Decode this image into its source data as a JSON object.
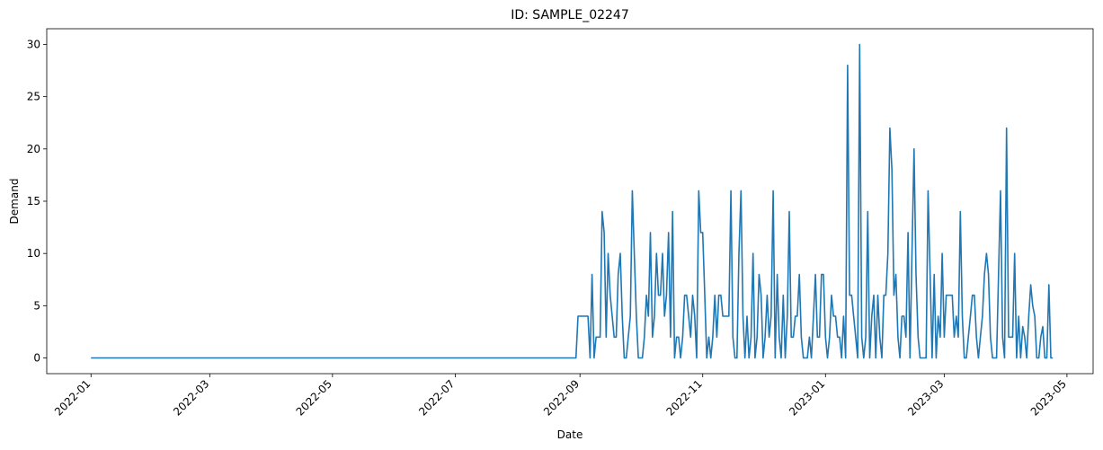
{
  "chart_data": {
    "type": "line",
    "title": "ID: SAMPLE_02247",
    "xlabel": "Date",
    "ylabel": "Demand",
    "ylim": [
      -1.5,
      31.5
    ],
    "xlim": [
      "2021-12-10",
      "2023-05-14"
    ],
    "grid": false,
    "legend": "none",
    "x_ticks": [
      "2022-01",
      "2022-03",
      "2022-05",
      "2022-07",
      "2022-09",
      "2022-11",
      "2023-01",
      "2023-03",
      "2023-05"
    ],
    "y_ticks": [
      0,
      5,
      10,
      15,
      20,
      25,
      30
    ],
    "line_color": "#1f77b4",
    "series": [
      {
        "points": [
          [
            "2022-01-01",
            0
          ],
          [
            "2022-08-30",
            0
          ],
          [
            "2022-08-31",
            4
          ],
          [
            "2022-09-05",
            4
          ],
          [
            "2022-09-06",
            0
          ],
          [
            "2022-09-07",
            8
          ],
          [
            "2022-09-08",
            0
          ],
          [
            "2022-09-09",
            2
          ],
          [
            "2022-09-11",
            2
          ],
          [
            "2022-09-12",
            14
          ],
          [
            "2022-09-13",
            12
          ],
          [
            "2022-09-14",
            2
          ],
          [
            "2022-09-15",
            10
          ],
          [
            "2022-09-16",
            6
          ],
          [
            "2022-09-17",
            4
          ],
          [
            "2022-09-18",
            2
          ],
          [
            "2022-09-19",
            2
          ],
          [
            "2022-09-20",
            8
          ],
          [
            "2022-09-21",
            10
          ],
          [
            "2022-09-22",
            4
          ],
          [
            "2022-09-23",
            0
          ],
          [
            "2022-09-24",
            0
          ],
          [
            "2022-09-25",
            2
          ],
          [
            "2022-09-26",
            4
          ],
          [
            "2022-09-27",
            16
          ],
          [
            "2022-09-28",
            10
          ],
          [
            "2022-09-29",
            4
          ],
          [
            "2022-09-30",
            0
          ],
          [
            "2022-10-01",
            0
          ],
          [
            "2022-10-02",
            0
          ],
          [
            "2022-10-03",
            2
          ],
          [
            "2022-10-04",
            6
          ],
          [
            "2022-10-05",
            4
          ],
          [
            "2022-10-06",
            12
          ],
          [
            "2022-10-07",
            2
          ],
          [
            "2022-10-08",
            4
          ],
          [
            "2022-10-09",
            10
          ],
          [
            "2022-10-10",
            6
          ],
          [
            "2022-10-11",
            6
          ],
          [
            "2022-10-12",
            10
          ],
          [
            "2022-10-13",
            4
          ],
          [
            "2022-10-14",
            6
          ],
          [
            "2022-10-15",
            12
          ],
          [
            "2022-10-16",
            2
          ],
          [
            "2022-10-17",
            14
          ],
          [
            "2022-10-18",
            0
          ],
          [
            "2022-10-19",
            2
          ],
          [
            "2022-10-20",
            2
          ],
          [
            "2022-10-21",
            0
          ],
          [
            "2022-10-22",
            2
          ],
          [
            "2022-10-23",
            6
          ],
          [
            "2022-10-24",
            6
          ],
          [
            "2022-10-25",
            4
          ],
          [
            "2022-10-26",
            2
          ],
          [
            "2022-10-27",
            6
          ],
          [
            "2022-10-28",
            4
          ],
          [
            "2022-10-29",
            0
          ],
          [
            "2022-10-30",
            16
          ],
          [
            "2022-10-31",
            12
          ],
          [
            "2022-11-01",
            12
          ],
          [
            "2022-11-02",
            6
          ],
          [
            "2022-11-03",
            0
          ],
          [
            "2022-11-04",
            2
          ],
          [
            "2022-11-05",
            0
          ],
          [
            "2022-11-06",
            2
          ],
          [
            "2022-11-07",
            6
          ],
          [
            "2022-11-08",
            2
          ],
          [
            "2022-11-09",
            6
          ],
          [
            "2022-11-10",
            6
          ],
          [
            "2022-11-11",
            4
          ],
          [
            "2022-11-14",
            4
          ],
          [
            "2022-11-15",
            16
          ],
          [
            "2022-11-16",
            2
          ],
          [
            "2022-11-17",
            0
          ],
          [
            "2022-11-18",
            0
          ],
          [
            "2022-11-19",
            10
          ],
          [
            "2022-11-20",
            16
          ],
          [
            "2022-11-21",
            4
          ],
          [
            "2022-11-22",
            0
          ],
          [
            "2022-11-23",
            4
          ],
          [
            "2022-11-24",
            0
          ],
          [
            "2022-11-25",
            2
          ],
          [
            "2022-11-26",
            10
          ],
          [
            "2022-11-27",
            0
          ],
          [
            "2022-11-28",
            2
          ],
          [
            "2022-11-29",
            8
          ],
          [
            "2022-11-30",
            6
          ],
          [
            "2022-12-01",
            0
          ],
          [
            "2022-12-02",
            2
          ],
          [
            "2022-12-03",
            6
          ],
          [
            "2022-12-04",
            2
          ],
          [
            "2022-12-05",
            4
          ],
          [
            "2022-12-06",
            16
          ],
          [
            "2022-12-07",
            0
          ],
          [
            "2022-12-08",
            8
          ],
          [
            "2022-12-09",
            2
          ],
          [
            "2022-12-10",
            0
          ],
          [
            "2022-12-11",
            6
          ],
          [
            "2022-12-12",
            0
          ],
          [
            "2022-12-13",
            4
          ],
          [
            "2022-12-14",
            14
          ],
          [
            "2022-12-15",
            2
          ],
          [
            "2022-12-16",
            2
          ],
          [
            "2022-12-17",
            4
          ],
          [
            "2022-12-18",
            4
          ],
          [
            "2022-12-19",
            8
          ],
          [
            "2022-12-20",
            2
          ],
          [
            "2022-12-21",
            0
          ],
          [
            "2022-12-22",
            0
          ],
          [
            "2022-12-23",
            0
          ],
          [
            "2022-12-24",
            2
          ],
          [
            "2022-12-25",
            0
          ],
          [
            "2022-12-26",
            4
          ],
          [
            "2022-12-27",
            8
          ],
          [
            "2022-12-28",
            2
          ],
          [
            "2022-12-29",
            2
          ],
          [
            "2022-12-30",
            8
          ],
          [
            "2022-12-31",
            8
          ],
          [
            "2023-01-01",
            2
          ],
          [
            "2023-01-02",
            0
          ],
          [
            "2023-01-03",
            2
          ],
          [
            "2023-01-04",
            6
          ],
          [
            "2023-01-05",
            4
          ],
          [
            "2023-01-06",
            4
          ],
          [
            "2023-01-07",
            2
          ],
          [
            "2023-01-08",
            2
          ],
          [
            "2023-01-09",
            0
          ],
          [
            "2023-01-10",
            4
          ],
          [
            "2023-01-11",
            0
          ],
          [
            "2023-01-12",
            28
          ],
          [
            "2023-01-13",
            6
          ],
          [
            "2023-01-14",
            6
          ],
          [
            "2023-01-15",
            4
          ],
          [
            "2023-01-16",
            2
          ],
          [
            "2023-01-17",
            0
          ],
          [
            "2023-01-18",
            30
          ],
          [
            "2023-01-19",
            2
          ],
          [
            "2023-01-20",
            0
          ],
          [
            "2023-01-21",
            2
          ],
          [
            "2023-01-22",
            14
          ],
          [
            "2023-01-23",
            0
          ],
          [
            "2023-01-24",
            4
          ],
          [
            "2023-01-25",
            6
          ],
          [
            "2023-01-26",
            0
          ],
          [
            "2023-01-27",
            6
          ],
          [
            "2023-01-28",
            2
          ],
          [
            "2023-01-29",
            0
          ],
          [
            "2023-01-30",
            6
          ],
          [
            "2023-01-31",
            6
          ],
          [
            "2023-02-01",
            10
          ],
          [
            "2023-02-02",
            22
          ],
          [
            "2023-02-03",
            18
          ],
          [
            "2023-02-04",
            6
          ],
          [
            "2023-02-05",
            8
          ],
          [
            "2023-02-06",
            2
          ],
          [
            "2023-02-07",
            0
          ],
          [
            "2023-02-08",
            4
          ],
          [
            "2023-02-09",
            4
          ],
          [
            "2023-02-10",
            2
          ],
          [
            "2023-02-11",
            12
          ],
          [
            "2023-02-12",
            0
          ],
          [
            "2023-02-13",
            10
          ],
          [
            "2023-02-14",
            20
          ],
          [
            "2023-02-15",
            8
          ],
          [
            "2023-02-16",
            2
          ],
          [
            "2023-02-17",
            0
          ],
          [
            "2023-02-18",
            0
          ],
          [
            "2023-02-19",
            0
          ],
          [
            "2023-02-20",
            0
          ],
          [
            "2023-02-21",
            16
          ],
          [
            "2023-02-22",
            8
          ],
          [
            "2023-02-23",
            0
          ],
          [
            "2023-02-24",
            8
          ],
          [
            "2023-02-25",
            0
          ],
          [
            "2023-02-26",
            4
          ],
          [
            "2023-02-27",
            2
          ],
          [
            "2023-02-28",
            10
          ],
          [
            "2023-03-01",
            2
          ],
          [
            "2023-03-02",
            6
          ],
          [
            "2023-03-03",
            6
          ],
          [
            "2023-03-04",
            6
          ],
          [
            "2023-03-05",
            6
          ],
          [
            "2023-03-06",
            2
          ],
          [
            "2023-03-07",
            4
          ],
          [
            "2023-03-08",
            2
          ],
          [
            "2023-03-09",
            14
          ],
          [
            "2023-03-10",
            4
          ],
          [
            "2023-03-11",
            0
          ],
          [
            "2023-03-12",
            0
          ],
          [
            "2023-03-13",
            2
          ],
          [
            "2023-03-14",
            4
          ],
          [
            "2023-03-15",
            6
          ],
          [
            "2023-03-16",
            6
          ],
          [
            "2023-03-17",
            2
          ],
          [
            "2023-03-18",
            0
          ],
          [
            "2023-03-19",
            2
          ],
          [
            "2023-03-20",
            4
          ],
          [
            "2023-03-21",
            8
          ],
          [
            "2023-03-22",
            10
          ],
          [
            "2023-03-23",
            8
          ],
          [
            "2023-03-24",
            2
          ],
          [
            "2023-03-25",
            0
          ],
          [
            "2023-03-26",
            0
          ],
          [
            "2023-03-27",
            0
          ],
          [
            "2023-03-28",
            8
          ],
          [
            "2023-03-29",
            16
          ],
          [
            "2023-03-30",
            2
          ],
          [
            "2023-03-31",
            0
          ],
          [
            "2023-04-01",
            22
          ],
          [
            "2023-04-02",
            2
          ],
          [
            "2023-04-03",
            2
          ],
          [
            "2023-04-04",
            2
          ],
          [
            "2023-04-05",
            10
          ],
          [
            "2023-04-06",
            0
          ],
          [
            "2023-04-07",
            4
          ],
          [
            "2023-04-08",
            0
          ],
          [
            "2023-04-09",
            3
          ],
          [
            "2023-04-10",
            2
          ],
          [
            "2023-04-11",
            0
          ],
          [
            "2023-04-12",
            4
          ],
          [
            "2023-04-13",
            7
          ],
          [
            "2023-04-14",
            5
          ],
          [
            "2023-04-15",
            4
          ],
          [
            "2023-04-16",
            0
          ],
          [
            "2023-04-17",
            0
          ],
          [
            "2023-04-18",
            2
          ],
          [
            "2023-04-19",
            3
          ],
          [
            "2023-04-20",
            0
          ],
          [
            "2023-04-21",
            0
          ],
          [
            "2023-04-22",
            7
          ],
          [
            "2023-04-23",
            0
          ],
          [
            "2023-04-24",
            0
          ]
        ]
      }
    ]
  }
}
